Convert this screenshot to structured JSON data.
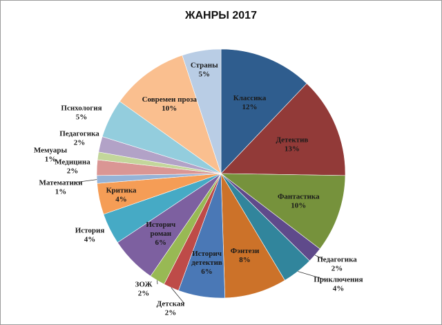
{
  "chart_data": {
    "type": "pie",
    "title": "ЖАНРЫ 2017",
    "slices": [
      {
        "label": "Классика",
        "pct_label": "12%",
        "value": 12,
        "color": "#2f5d8e"
      },
      {
        "label": "Детектив",
        "pct_label": "13%",
        "value": 13,
        "color": "#923a38"
      },
      {
        "label": "Фантастика",
        "pct_label": "10%",
        "value": 10,
        "color": "#76923c"
      },
      {
        "label": "Педагогика",
        "pct_label": "2%",
        "value": 2,
        "color": "#5f4a8b"
      },
      {
        "label": "Приключения",
        "pct_label": "4%",
        "value": 4,
        "color": "#31859c"
      },
      {
        "label": "Фэнтези",
        "pct_label": "8%",
        "value": 8,
        "color": "#cc7229"
      },
      {
        "label": "Историч детектив",
        "pct_label": "6%",
        "value": 6,
        "color": "#4a78b6"
      },
      {
        "label": "Детская",
        "pct_label": "2%",
        "value": 2,
        "color": "#be4b48"
      },
      {
        "label": "ЗОЖ",
        "pct_label": "2%",
        "value": 2,
        "color": "#98b954"
      },
      {
        "label": "Историч роман",
        "pct_label": "6%",
        "value": 6,
        "color": "#7d60a0"
      },
      {
        "label": "История",
        "pct_label": "4%",
        "value": 4,
        "color": "#46aac5"
      },
      {
        "label": "Критика",
        "pct_label": "4%",
        "value": 4,
        "color": "#f59d56"
      },
      {
        "label": "Математики",
        "pct_label": "1%",
        "value": 1,
        "color": "#95b3d7"
      },
      {
        "label": "Медицина",
        "pct_label": "2%",
        "value": 2,
        "color": "#da9694"
      },
      {
        "label": "Мемуары",
        "pct_label": "1%",
        "value": 1,
        "color": "#c3d69b"
      },
      {
        "label": "Педагогика",
        "pct_label": "2%",
        "value": 2,
        "color": "#b2a2c7"
      },
      {
        "label": "Психология",
        "pct_label": "5%",
        "value": 5,
        "color": "#93cddd"
      },
      {
        "label": "Современ проза",
        "pct_label": "10%",
        "value": 10,
        "color": "#fabf8f"
      },
      {
        "label": "Страны",
        "pct_label": "5%",
        "value": 5,
        "color": "#b9cde5"
      }
    ]
  }
}
